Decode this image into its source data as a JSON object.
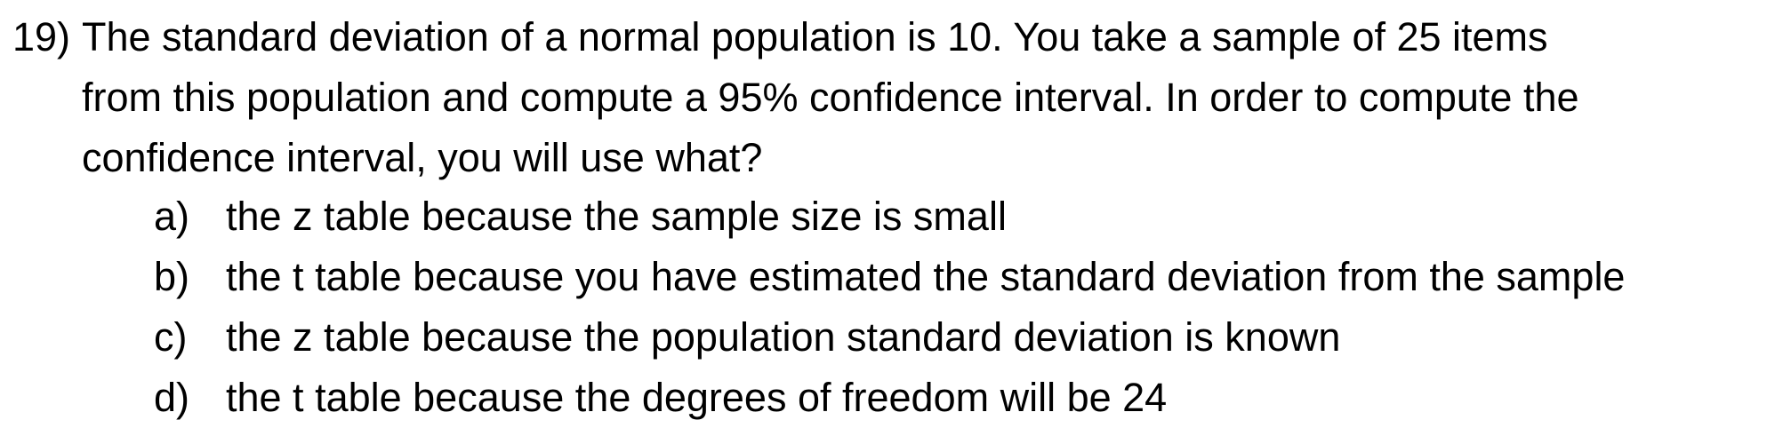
{
  "question": {
    "number": "19)",
    "lines": [
      "The standard deviation of a normal population is 10. You take a sample of 25 items",
      "from this population and compute a 95% confidence interval. In order to compute the",
      "confidence interval, you will use what?"
    ],
    "options": [
      {
        "letter": "a)",
        "text": "the z table because the sample size is small"
      },
      {
        "letter": "b)",
        "text": "the t table because you have estimated the standard deviation from the sample"
      },
      {
        "letter": "c)",
        "text": "the z table because the population standard deviation is known"
      },
      {
        "letter": "d)",
        "text": "the t table because the degrees of freedom will be 24"
      }
    ]
  }
}
